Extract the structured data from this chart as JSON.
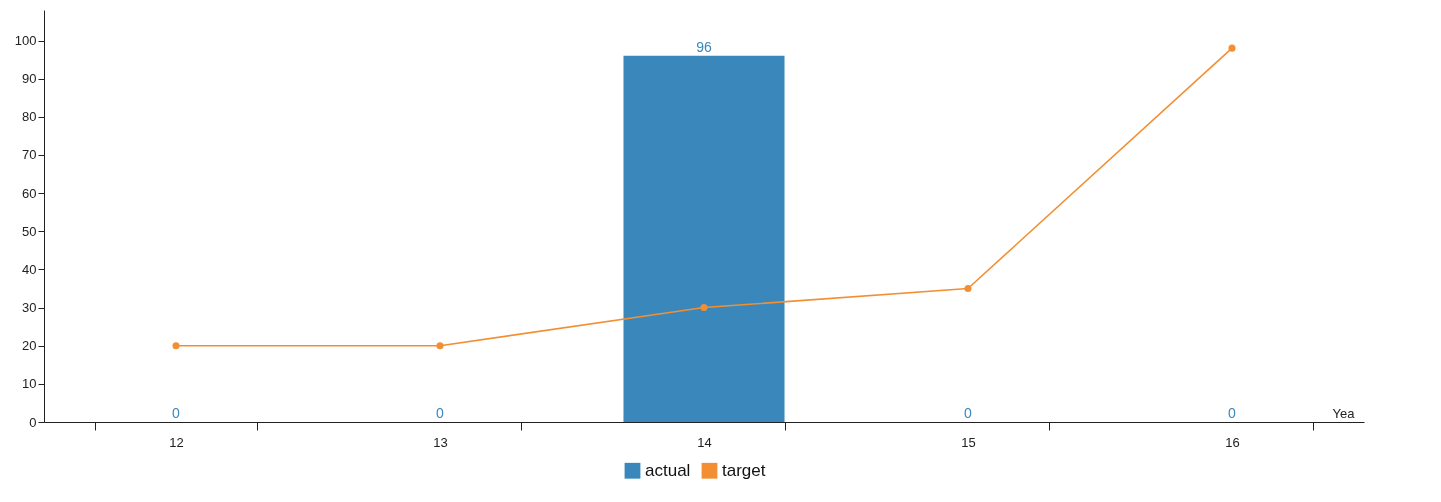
{
  "chart_data": {
    "type": "bar",
    "xlabel": "Yea",
    "categories": [
      "12",
      "13",
      "14",
      "15",
      "16"
    ],
    "series": [
      {
        "name": "actual",
        "color": "#3a87bb",
        "values": [
          0,
          0,
          96,
          0,
          0
        ],
        "value_labels": [
          "0",
          "0",
          "96",
          "0",
          "0"
        ]
      },
      {
        "name": "target",
        "type": "line",
        "color": "#f28f33",
        "values": [
          20,
          20,
          30,
          35,
          98
        ],
        "marker": "circle",
        "line_style": "solid"
      }
    ],
    "ylim": [
      0,
      108
    ],
    "yticks": [
      0,
      10,
      20,
      30,
      40,
      50,
      60,
      70,
      80,
      90,
      100
    ],
    "grid": false,
    "legend": "bottom"
  }
}
